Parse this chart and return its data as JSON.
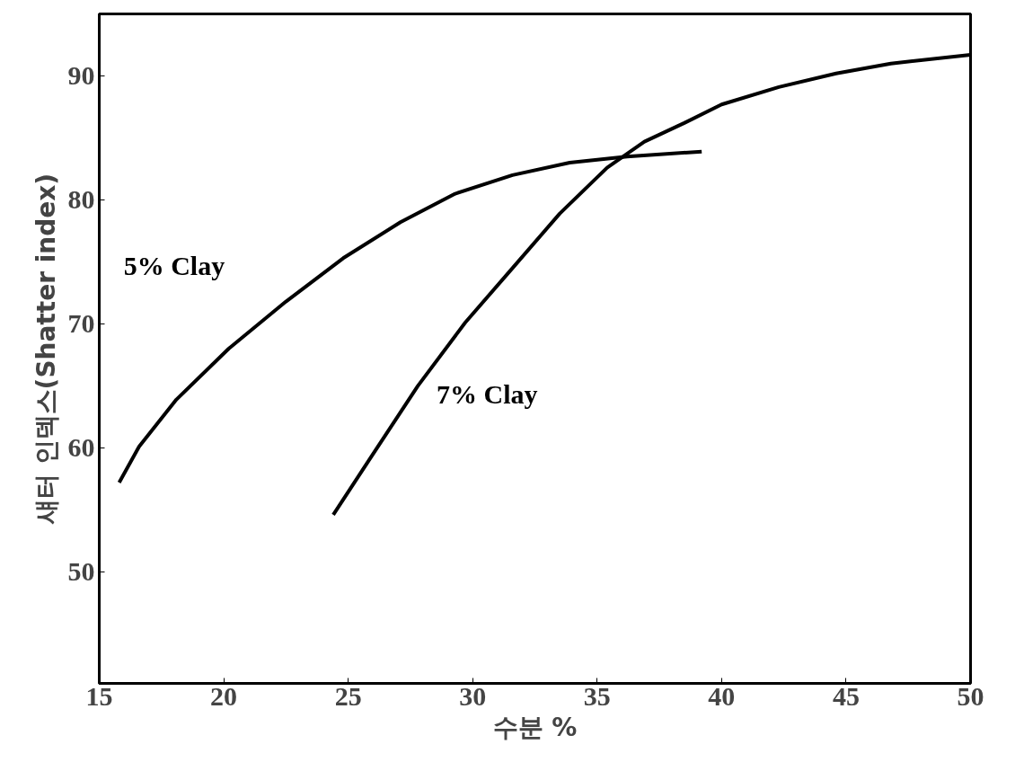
{
  "chart_data": {
    "type": "line",
    "xlabel": "수분 %",
    "ylabel": "섀터 인덱스(Shatter index)",
    "xlim": [
      15,
      50
    ],
    "ylim": [
      41,
      95
    ],
    "xticks": [
      15,
      20,
      25,
      30,
      35,
      40,
      45,
      50
    ],
    "yticks": [
      50,
      60,
      70,
      80,
      90
    ],
    "grid": false,
    "marker": "none",
    "line_style": "solid",
    "series": [
      {
        "name": "5% Clay",
        "color": "#000000",
        "x": [
          15.8,
          16.6,
          18.1,
          20.2,
          22.5,
          24.8,
          27.1,
          29.3,
          31.6,
          33.9,
          36.2,
          39.2
        ],
        "values": [
          57.2,
          60.1,
          63.9,
          68.0,
          71.8,
          75.3,
          78.2,
          80.5,
          82.0,
          83.0,
          83.5,
          83.9
        ]
      },
      {
        "name": "7% Clay",
        "color": "#000000",
        "x": [
          24.4,
          25.9,
          27.8,
          29.7,
          31.6,
          33.5,
          35.4,
          36.9,
          38.5,
          40.0,
          42.3,
          44.6,
          46.8,
          50.0
        ],
        "values": [
          54.6,
          59.2,
          65.0,
          70.1,
          74.5,
          78.9,
          82.6,
          84.7,
          86.2,
          87.7,
          89.1,
          90.2,
          91.0,
          91.7
        ]
      }
    ]
  }
}
